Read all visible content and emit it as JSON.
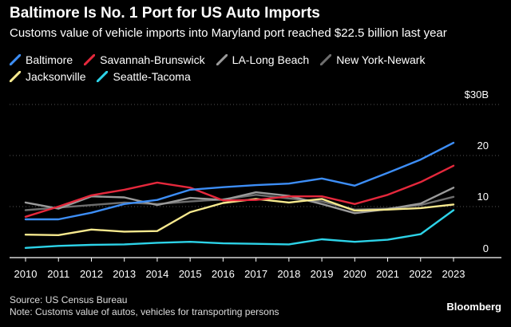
{
  "header": {
    "title": "Baltimore Is No. 1 Port for US Auto Imports",
    "subtitle": "Customs value of vehicle imports into Maryland port reached $22.5 billion last year"
  },
  "footer": {
    "source": "Source: US Census Bureau",
    "note": "Note: Customs value of autos, vehicles for transporting persons",
    "brand": "Bloomberg"
  },
  "colors": {
    "background": "#000000",
    "grid": "#555555",
    "axis": "#ffffff"
  },
  "chart_data": {
    "type": "line",
    "x": [
      2010,
      2011,
      2012,
      2013,
      2014,
      2015,
      2016,
      2017,
      2018,
      2019,
      2020,
      2021,
      2022,
      2023
    ],
    "ylim": [
      0,
      30
    ],
    "yticks": [
      0,
      10,
      20,
      30
    ],
    "ytick_labels": [
      "0",
      "10",
      "20",
      "$30B"
    ],
    "y_axis_side": "right",
    "grid": true,
    "legend_placement": "top-left",
    "series": [
      {
        "name": "Baltimore",
        "color": "#3d8ef7",
        "values": [
          7.5,
          7.5,
          8.8,
          10.5,
          11.3,
          13.3,
          13.8,
          14.2,
          14.5,
          15.5,
          14.1,
          16.6,
          19.2,
          22.5
        ]
      },
      {
        "name": "Savannah-Brunswick",
        "color": "#e5283c",
        "values": [
          8.0,
          10.0,
          12.2,
          13.3,
          14.7,
          13.7,
          11.2,
          11.3,
          12.0,
          12.0,
          10.5,
          12.3,
          14.8,
          18.0
        ]
      },
      {
        "name": "LA-Long Beach",
        "color": "#9a9a9a",
        "values": [
          10.8,
          9.6,
          12.0,
          11.8,
          10.3,
          11.7,
          11.3,
          12.8,
          12.1,
          10.5,
          8.7,
          9.5,
          10.6,
          13.7
        ]
      },
      {
        "name": "New York-Newark",
        "color": "#6e6e6e",
        "values": [
          9.3,
          9.8,
          10.3,
          10.8,
          10.5,
          11.0,
          11.4,
          12.3,
          11.6,
          11.0,
          9.4,
          9.6,
          10.3,
          11.9
        ]
      },
      {
        "name": "Jacksonville",
        "color": "#f7e98e",
        "values": [
          4.5,
          4.4,
          5.5,
          5.1,
          5.2,
          8.9,
          10.7,
          11.5,
          10.8,
          11.5,
          9.2,
          9.4,
          9.7,
          10.4
        ]
      },
      {
        "name": "Seattle-Tacoma",
        "color": "#2dd3e8",
        "values": [
          1.9,
          2.3,
          2.5,
          2.6,
          2.9,
          3.1,
          2.8,
          2.7,
          2.6,
          3.6,
          3.1,
          3.5,
          4.6,
          9.3
        ]
      }
    ]
  }
}
